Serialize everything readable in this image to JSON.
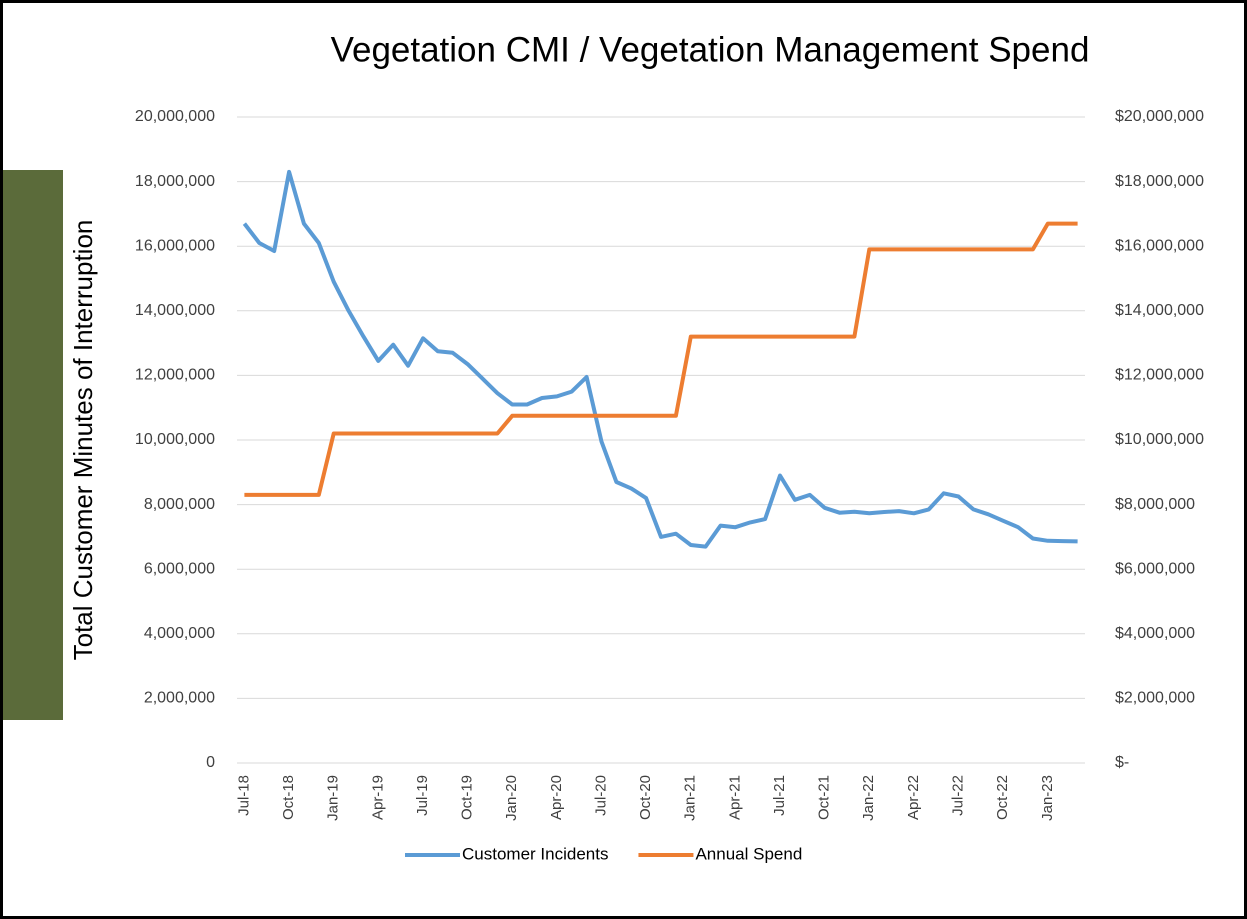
{
  "chart_data": {
    "type": "line",
    "title": "Vegetation CMI / Vegetation Management Spend",
    "y_label": "Total Customer Minutes of Interruption",
    "categories": [
      "Jul-18",
      null,
      null,
      "Oct-18",
      null,
      null,
      "Jan-19",
      null,
      null,
      "Apr-19",
      null,
      null,
      "Jul-19",
      null,
      null,
      "Oct-19",
      null,
      null,
      "Jan-20",
      null,
      null,
      "Apr-20",
      null,
      null,
      "Jul-20",
      null,
      null,
      "Oct-20",
      null,
      null,
      "Jan-21",
      null,
      null,
      "Apr-21",
      null,
      null,
      "Jul-21",
      null,
      null,
      "Oct-21",
      null,
      null,
      "Jan-22",
      null,
      null,
      "Apr-22",
      null,
      null,
      "Jul-22",
      null,
      null,
      "Oct-22",
      null,
      null,
      "Jan-23",
      null,
      null
    ],
    "series": [
      {
        "name": "Customer Incidents",
        "color": "#5b9bd5",
        "values": [
          16700000,
          16100000,
          15850000,
          18300000,
          16700000,
          16100000,
          14900000,
          14000000,
          13200000,
          12450000,
          12950000,
          12300000,
          13150000,
          12750000,
          12700000,
          12350000,
          11900000,
          11450000,
          11100000,
          11100000,
          11300000,
          11350000,
          11500000,
          11950000,
          9950000,
          8700000,
          8500000,
          8200000,
          7000000,
          7100000,
          6750000,
          6700000,
          7350000,
          7300000,
          7450000,
          7550000,
          8900000,
          8150000,
          8300000,
          7900000,
          7750000,
          7780000,
          7730000,
          7770000,
          7800000,
          7730000,
          7850000,
          8350000,
          8250000,
          7850000,
          7700000,
          7500000,
          7300000,
          6950000,
          6880000,
          6870000,
          6860000
        ]
      },
      {
        "name": "Annual Spend",
        "color": "#ed7d31",
        "axis": "y2",
        "values": [
          8300000,
          8300000,
          8300000,
          8300000,
          8300000,
          8300000,
          10200000,
          10200000,
          10200000,
          10200000,
          10200000,
          10200000,
          10200000,
          10200000,
          10200000,
          10200000,
          10200000,
          10200000,
          10750000,
          10750000,
          10750000,
          10750000,
          10750000,
          10750000,
          10750000,
          10750000,
          10750000,
          10750000,
          10750000,
          10750000,
          13200000,
          13200000,
          13200000,
          13200000,
          13200000,
          13200000,
          13200000,
          13200000,
          13200000,
          13200000,
          13200000,
          13200000,
          15900000,
          15900000,
          15900000,
          15900000,
          15900000,
          15900000,
          15900000,
          15900000,
          15900000,
          15900000,
          15900000,
          15900000,
          16700000,
          16700000,
          16700000
        ]
      }
    ],
    "ylim": [
      0,
      20000000
    ],
    "yticks": [
      0,
      {
        "value": 2000000,
        "label": "2,000,000"
      },
      {
        "value": 4000000,
        "label": "4,000,000"
      },
      {
        "value": 6000000,
        "label": "6,000,000"
      },
      {
        "value": 8000000,
        "label": "8,000,000"
      },
      {
        "value": 10000000,
        "label": "10,000,000"
      },
      {
        "value": 12000000,
        "label": "12,000,000"
      },
      {
        "value": 14000000,
        "label": "14,000,000"
      },
      {
        "value": 16000000,
        "label": "16,000,000"
      },
      {
        "value": 18000000,
        "label": "18,000,000"
      },
      {
        "value": 20000000,
        "label": "20,000,000"
      }
    ],
    "y2lim": [
      0,
      20000000
    ],
    "y2ticks": [
      {
        "value": 0,
        "label": "$-"
      },
      {
        "value": 2000000,
        "label": "$2,000,000"
      },
      {
        "value": 4000000,
        "label": "$4,000,000"
      },
      {
        "value": 6000000,
        "label": "$6,000,000"
      },
      {
        "value": 8000000,
        "label": "$8,000,000"
      },
      {
        "value": 10000000,
        "label": "$10,000,000"
      },
      {
        "value": 12000000,
        "label": "$12,000,000"
      },
      {
        "value": 14000000,
        "label": "$14,000,000"
      },
      {
        "value": 16000000,
        "label": "$16,000,000"
      },
      {
        "value": 18000000,
        "label": "$18,000,000"
      },
      {
        "value": 20000000,
        "label": "$20,000,000"
      }
    ],
    "grid": true,
    "legend": "bottom"
  }
}
